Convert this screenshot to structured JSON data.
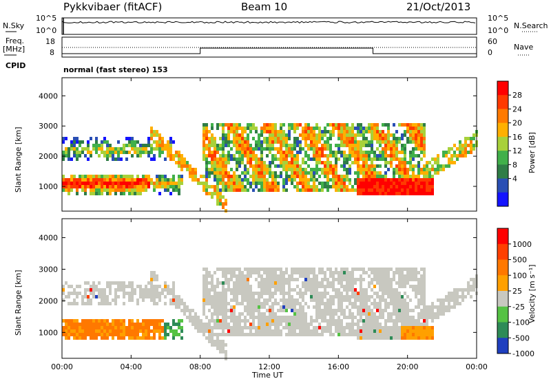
{
  "header": {
    "radar": "Pykkvibaer (fitACF)",
    "beam": "Beam 10",
    "date": "21/Oct/2013"
  },
  "strip_panels": {
    "nsky_label": "N.Sky",
    "nsearch_label": "N.Search",
    "nsky_ticks": [
      "10^5",
      "10^0"
    ],
    "nsearch_ticks": [
      "10^5",
      "10^0"
    ],
    "freq_label_line1": "Freq.",
    "freq_label_line2": "[MHz]",
    "freq_ticks": [
      "18",
      "8"
    ],
    "nave_label": "Nave",
    "nave_ticks": [
      "60",
      "0"
    ],
    "cpid_label": "CPID",
    "cpid_text": "normal (fast stereo) 153"
  },
  "chart_data": [
    {
      "type": "heatmap",
      "name": "power",
      "ylabel": "Slant Range [km]",
      "xlabel": "",
      "x_ticks": [
        "00:00",
        "04:00",
        "08:00",
        "12:00",
        "16:00",
        "20:00",
        "00:00"
      ],
      "y_ticks": [
        "4000",
        "3000",
        "2000",
        "1000"
      ],
      "ylim": [
        180,
        4600
      ],
      "colorbar": {
        "label": "Power [dB]",
        "ticks": [
          "28",
          "24",
          "20",
          "16",
          "12",
          "8",
          "4"
        ],
        "colors": [
          "#1414ff",
          "#2a4fb4",
          "#2f7d46",
          "#41b04a",
          "#a8d13a",
          "#ffb000",
          "#ff7a00",
          "#ff3a00",
          "#ff0000"
        ]
      }
    },
    {
      "type": "heatmap",
      "name": "velocity",
      "ylabel": "Slant Range [km]",
      "xlabel": "Time UT",
      "x_ticks": [
        "00:00",
        "04:00",
        "08:00",
        "12:00",
        "16:00",
        "20:00",
        "00:00"
      ],
      "y_ticks": [
        "4000",
        "3000",
        "2000",
        "1000"
      ],
      "ylim": [
        180,
        4600
      ],
      "colorbar": {
        "label": "Velocity [m s⁻¹]",
        "ticks": [
          "1000",
          "500",
          "100",
          "25",
          "-25",
          "-100",
          "-500",
          "-1000"
        ],
        "colors": [
          "#1f3fbf",
          "#2e8b57",
          "#55c244",
          "#c8c8c0",
          "#ffa000",
          "#ff7800",
          "#ff4000",
          "#ff0000"
        ]
      }
    }
  ]
}
